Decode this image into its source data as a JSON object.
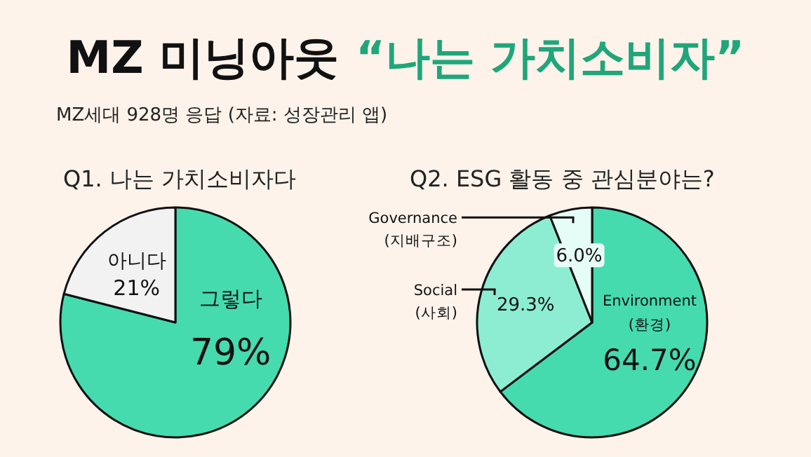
{
  "chart_data": [
    {
      "type": "other",
      "title": "MZ 미닝아웃",
      "subtitle": "“나는 가치소비자”",
      "annotations": [
        "MZ세대 928명 응답 (자료: 성장관리 앱)"
      ]
    },
    {
      "type": "pie",
      "title": "Q1. 나는 가치소비자다",
      "categories": [
        "그렇다",
        "아니다"
      ],
      "values": [
        79,
        21
      ],
      "colors": [
        "#45dbaf",
        "#f2f2f2"
      ],
      "value_labels": [
        "79%",
        "21%"
      ]
    },
    {
      "type": "pie",
      "title": "Q2. ESG 활동 중 관심분야는?",
      "categories": [
        "Environment (환경)",
        "Social (사회)",
        "Governance (지배구조)"
      ],
      "values": [
        64.7,
        29.3,
        6.0
      ],
      "colors": [
        "#45dbaf",
        "#8cedd2",
        "#e6fcf6"
      ],
      "value_labels": [
        "64.7%",
        "29.3%",
        "6.0%"
      ]
    }
  ]
}
